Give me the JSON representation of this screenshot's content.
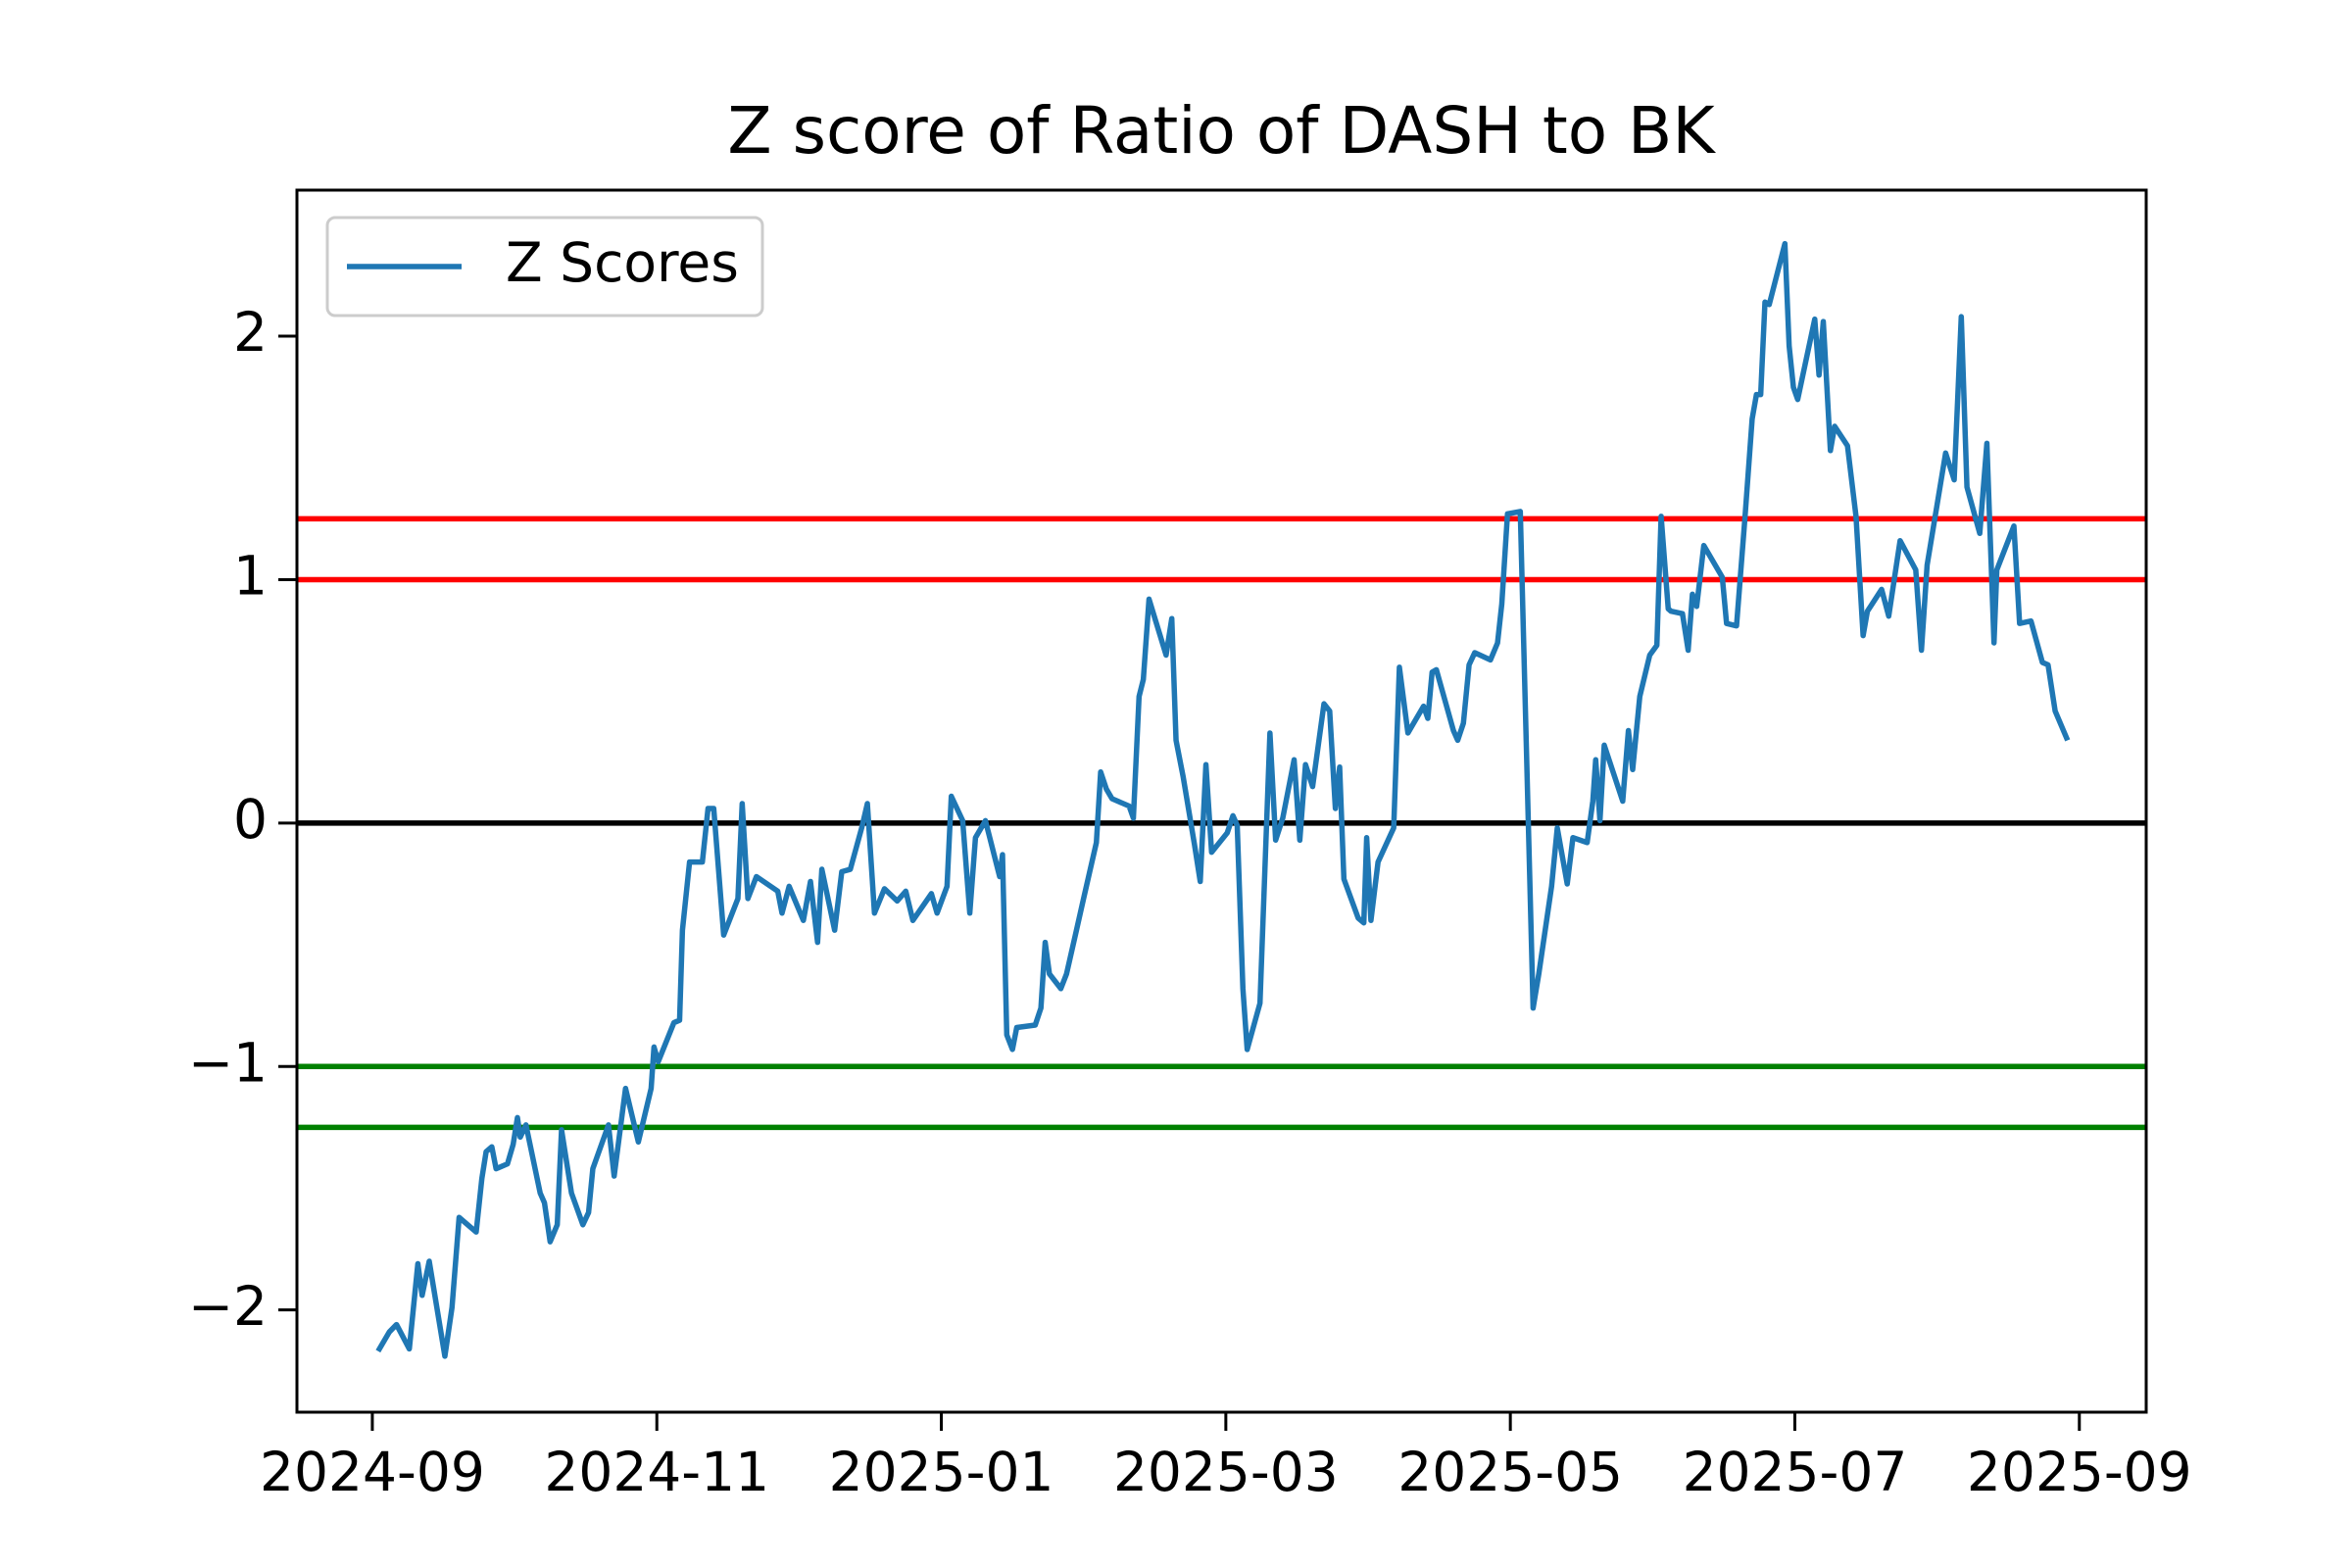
{
  "chart_data": {
    "type": "line",
    "title": "Z score of Ratio of DASH to BK",
    "xlim": [
      -0.53,
      12.47
    ],
    "xticks": [
      {
        "value": 0,
        "label": "2024-09"
      },
      {
        "value": 2,
        "label": "2024-11"
      },
      {
        "value": 4,
        "label": "2025-01"
      },
      {
        "value": 6,
        "label": "2025-03"
      },
      {
        "value": 8,
        "label": "2025-05"
      },
      {
        "value": 10,
        "label": "2025-07"
      },
      {
        "value": 12,
        "label": "2025-09"
      }
    ],
    "ylim": [
      -2.42,
      2.6
    ],
    "yticks": [
      {
        "value": -2,
        "label": "−2"
      },
      {
        "value": -1,
        "label": "−1"
      },
      0,
      1,
      2
    ],
    "legend": "upper left",
    "hlines": [
      {
        "value": 1.25,
        "color": "#ff0000"
      },
      {
        "value": 1,
        "color": "#ff0000"
      },
      {
        "value": 0,
        "color": "#000000"
      },
      {
        "value": -1,
        "color": "#008000"
      },
      {
        "value": -1.25,
        "color": "#008000"
      }
    ],
    "x": [
      0.05,
      0.12,
      0.17,
      0.26,
      0.32,
      0.35,
      0.4,
      0.51,
      0.56,
      0.61,
      0.73,
      0.77,
      0.8,
      0.84,
      0.87,
      0.95,
      0.99,
      1.02,
      1.04,
      1.08,
      1.18,
      1.21,
      1.25,
      1.3,
      1.33,
      1.4,
      1.48,
      1.52,
      1.55,
      1.66,
      1.7,
      1.78,
      1.87,
      1.96,
      1.98,
      2.01,
      2.12,
      2.16,
      2.18,
      2.23,
      2.32,
      2.36,
      2.4,
      2.47,
      2.57,
      2.6,
      2.64,
      2.7,
      2.85,
      2.88,
      2.93,
      3.03,
      3.08,
      3.13,
      3.16,
      3.25,
      3.3,
      3.36,
      3.44,
      3.48,
      3.53,
      3.6,
      3.69,
      3.75,
      3.8,
      3.93,
      3.97,
      4.04,
      4.07,
      4.15,
      4.2,
      4.24,
      4.31,
      4.41,
      4.43,
      4.46,
      4.5,
      4.53,
      4.66,
      4.7,
      4.73,
      4.76,
      4.84,
      4.88,
      4.95,
      5.0,
      5.09,
      5.12,
      5.16,
      5.2,
      5.32,
      5.35,
      5.39,
      5.42,
      5.46,
      5.58,
      5.62,
      5.65,
      5.7,
      5.78,
      5.82,
      5.86,
      5.9,
      6.01,
      6.05,
      6.08,
      6.12,
      6.15,
      6.24,
      6.31,
      6.35,
      6.4,
      6.48,
      6.52,
      6.56,
      6.61,
      6.69,
      6.73,
      6.77,
      6.8,
      6.83,
      6.93,
      6.97,
      6.99,
      7.02,
      7.07,
      7.18,
      7.22,
      7.28,
      7.32,
      7.39,
      7.42,
      7.45,
      7.48,
      7.6,
      7.63,
      7.67,
      7.71,
      7.75,
      7.86,
      7.91,
      7.94,
      7.98,
      8.07,
      8.16,
      8.2,
      8.29,
      8.33,
      8.4,
      8.44,
      8.54,
      8.58,
      8.6,
      8.63,
      8.66,
      8.79,
      8.83,
      8.86,
      8.91,
      8.98,
      9.03,
      9.06,
      9.11,
      9.13,
      9.21,
      9.25,
      9.28,
      9.31,
      9.36,
      9.49,
      9.52,
      9.59,
      9.65,
      9.7,
      9.73,
      9.76,
      9.79,
      9.82,
      9.93,
      9.96,
      9.99,
      10.02,
      10.14,
      10.17,
      10.2,
      10.25,
      10.28,
      10.37,
      10.43,
      10.48,
      10.51,
      10.61,
      10.66,
      10.74,
      10.85,
      10.89,
      10.93,
      11.06,
      11.12,
      11.17,
      11.21,
      11.3,
      11.35,
      11.4,
      11.42,
      11.54,
      11.58,
      11.66,
      11.74,
      11.78,
      11.83,
      11.91
    ],
    "series": [
      {
        "name": "Z Scores",
        "color": "#1f77b4",
        "values": [
          -2.16,
          -2.09,
          -2.06,
          -2.16,
          -1.81,
          -1.94,
          -1.8,
          -2.19,
          -1.99,
          -1.62,
          -1.68,
          -1.46,
          -1.35,
          -1.33,
          -1.42,
          -1.4,
          -1.32,
          -1.21,
          -1.29,
          -1.24,
          -1.52,
          -1.56,
          -1.72,
          -1.65,
          -1.26,
          -1.52,
          -1.65,
          -1.6,
          -1.42,
          -1.24,
          -1.45,
          -1.09,
          -1.31,
          -1.09,
          -0.92,
          -0.98,
          -0.82,
          -0.81,
          -0.44,
          -0.16,
          -0.16,
          0.06,
          0.06,
          -0.46,
          -0.31,
          0.08,
          -0.31,
          -0.22,
          -0.28,
          -0.37,
          -0.26,
          -0.4,
          -0.24,
          -0.49,
          -0.19,
          -0.44,
          -0.2,
          -0.19,
          -0.02,
          0.08,
          -0.37,
          -0.27,
          -0.32,
          -0.28,
          -0.4,
          -0.29,
          -0.37,
          -0.26,
          0.11,
          0.01,
          -0.37,
          -0.06,
          0.01,
          -0.22,
          -0.13,
          -0.87,
          -0.93,
          -0.84,
          -0.83,
          -0.76,
          -0.49,
          -0.62,
          -0.68,
          -0.62,
          -0.44,
          -0.31,
          -0.08,
          0.21,
          0.14,
          0.1,
          0.07,
          0.02,
          0.52,
          0.59,
          0.92,
          0.69,
          0.84,
          0.34,
          0.19,
          -0.09,
          -0.24,
          0.24,
          -0.12,
          -0.04,
          0.03,
          -0.01,
          -0.68,
          -0.93,
          -0.74,
          0.37,
          -0.07,
          0.02,
          0.26,
          -0.07,
          0.24,
          0.15,
          0.49,
          0.46,
          0.06,
          0.23,
          -0.23,
          -0.39,
          -0.41,
          -0.06,
          -0.4,
          -0.16,
          -0.02,
          0.64,
          0.37,
          0.41,
          0.48,
          0.43,
          0.62,
          0.63,
          0.38,
          0.34,
          0.41,
          0.65,
          0.7,
          0.67,
          0.74,
          0.9,
          1.27,
          1.28,
          -0.76,
          -0.62,
          -0.26,
          -0.02,
          -0.25,
          -0.06,
          -0.08,
          0.09,
          0.26,
          0.01,
          0.32,
          0.09,
          0.38,
          0.22,
          0.52,
          0.69,
          0.73,
          1.26,
          0.88,
          0.87,
          0.86,
          0.71,
          0.94,
          0.89,
          1.14,
          1.01,
          0.82,
          0.81,
          1.26,
          1.66,
          1.76,
          1.76,
          2.14,
          2.13,
          2.38,
          1.96,
          1.79,
          1.74,
          2.07,
          1.84,
          2.06,
          1.53,
          1.63,
          1.55,
          1.26,
          0.77,
          0.87,
          0.96,
          0.85,
          1.16,
          1.04,
          0.71,
          1.06,
          1.52,
          1.41,
          2.08,
          1.38,
          1.19,
          1.56,
          0.74,
          1.04,
          1.22,
          0.82,
          0.83,
          0.66,
          0.65,
          0.46,
          0.35
        ]
      }
    ]
  }
}
